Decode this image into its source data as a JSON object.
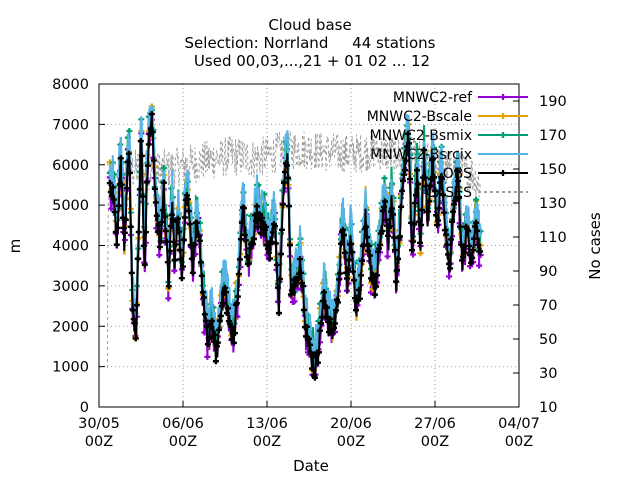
{
  "chart_data": {
    "type": "line",
    "title": [
      "Cloud base",
      "Selection: Norrland     44 stations",
      "Used 00,03,...,21 + 01 02 ... 12"
    ],
    "xlabel": "Date",
    "ylabel": "m",
    "y2label": "No cases",
    "x_ticks": [
      {
        "day": 0,
        "label": [
          "30/05",
          "00Z"
        ]
      },
      {
        "day": 7,
        "label": [
          "06/06",
          "00Z"
        ]
      },
      {
        "day": 14,
        "label": [
          "13/06",
          "00Z"
        ]
      },
      {
        "day": 21,
        "label": [
          "20/06",
          "00Z"
        ]
      },
      {
        "day": 28,
        "label": [
          "27/06",
          "00Z"
        ]
      },
      {
        "day": 35,
        "label": [
          "04/07",
          "00Z"
        ]
      }
    ],
    "xlim": [
      0,
      35
    ],
    "ylim": [
      0,
      8000
    ],
    "y_ticks": [
      0,
      1000,
      2000,
      3000,
      4000,
      5000,
      6000,
      7000,
      8000
    ],
    "y2lim": [
      10,
      200
    ],
    "y2_ticks": [
      10,
      30,
      50,
      70,
      90,
      110,
      130,
      150,
      170,
      190
    ],
    "grid": true,
    "legend_position": "top-right",
    "series": [
      {
        "name": "MNWC2-ref",
        "color": "#9400d3",
        "marker": "plus"
      },
      {
        "name": "MNWC2-Bscale",
        "color": "#e69f00",
        "marker": "plus"
      },
      {
        "name": "MNWC2-Bsmix",
        "color": "#009e73",
        "marker": "plus"
      },
      {
        "name": "MNWC2-Bsrcix",
        "color": "#56b4e9",
        "marker": "none"
      },
      {
        "name": "OBS",
        "color": "#000000",
        "marker": "plus"
      },
      {
        "name": "CASES",
        "color": "#a0a0a0",
        "marker": "none",
        "axis": "y2"
      }
    ],
    "obs_hourly_profile": {
      "day": [
        0.9,
        1.2,
        1.5,
        1.8,
        2.1,
        2.5,
        2.8,
        3.1,
        3.5,
        3.8,
        4.1,
        4.4,
        4.8,
        5.1,
        5.4,
        5.8,
        6.1,
        6.3,
        6.6,
        6.9,
        7.2,
        7.5,
        7.8,
        8.1,
        8.4,
        8.7,
        9.1,
        9.4,
        9.8,
        10.2,
        10.5,
        10.9,
        11.2,
        11.6,
        12.0,
        12.4,
        12.8,
        13.1,
        13.5,
        13.9,
        14.2,
        14.6,
        15.0,
        15.3,
        15.7,
        16.0,
        16.4,
        16.8,
        17.2,
        17.6,
        18.0,
        18.4,
        18.7,
        19.1,
        19.5,
        19.9,
        20.3,
        20.7,
        21.0,
        21.4,
        21.8,
        22.2,
        22.6,
        23.0,
        23.4,
        23.8,
        24.1,
        24.4,
        24.8,
        25.1,
        25.4,
        25.8,
        26.1,
        26.5,
        26.8,
        27.1,
        27.4,
        27.8,
        28.2,
        28.5,
        28.9,
        29.2,
        29.5,
        29.9,
        30.3,
        30.7,
        31.0,
        31.4,
        31.8
      ],
      "m": [
        5500,
        5200,
        4200,
        6200,
        4000,
        6600,
        2300,
        1900,
        6800,
        3500,
        6500,
        7100,
        4700,
        4000,
        5400,
        3000,
        5100,
        3500,
        4900,
        3100,
        5200,
        5000,
        3500,
        4400,
        4000,
        2600,
        1500,
        2200,
        1200,
        2600,
        2900,
        2000,
        1700,
        2900,
        5000,
        3500,
        4100,
        4800,
        4500,
        4400,
        3800,
        4800,
        2400,
        5000,
        6200,
        2900,
        3000,
        3500,
        2000,
        1300,
        900,
        1600,
        3000,
        2000,
        1900,
        2700,
        4500,
        3000,
        4200,
        2400,
        2900,
        4800,
        3500,
        3000,
        4000,
        5300,
        4000,
        5200,
        3000,
        4400,
        5800,
        6800,
        3800,
        5800,
        4000,
        6300,
        4500,
        6200,
        4200,
        5900,
        4200,
        3300,
        4700,
        5800,
        3500,
        4500,
        3300,
        4600,
        3600
      ]
    },
    "cases_profile": {
      "day": [
        0.7,
        0.75,
        0.8,
        1.5,
        3.0,
        5.0,
        7.0,
        9.0,
        11.0,
        13.0,
        15.0,
        17.0,
        19.0,
        21.0,
        23.0,
        25.0,
        27.0,
        29.0,
        31.0,
        31.8
      ],
      "n": [
        33,
        120,
        135,
        145,
        150,
        149,
        152,
        155,
        158,
        156,
        160,
        162,
        160,
        159,
        161,
        158,
        155,
        150,
        148,
        140
      ]
    }
  }
}
